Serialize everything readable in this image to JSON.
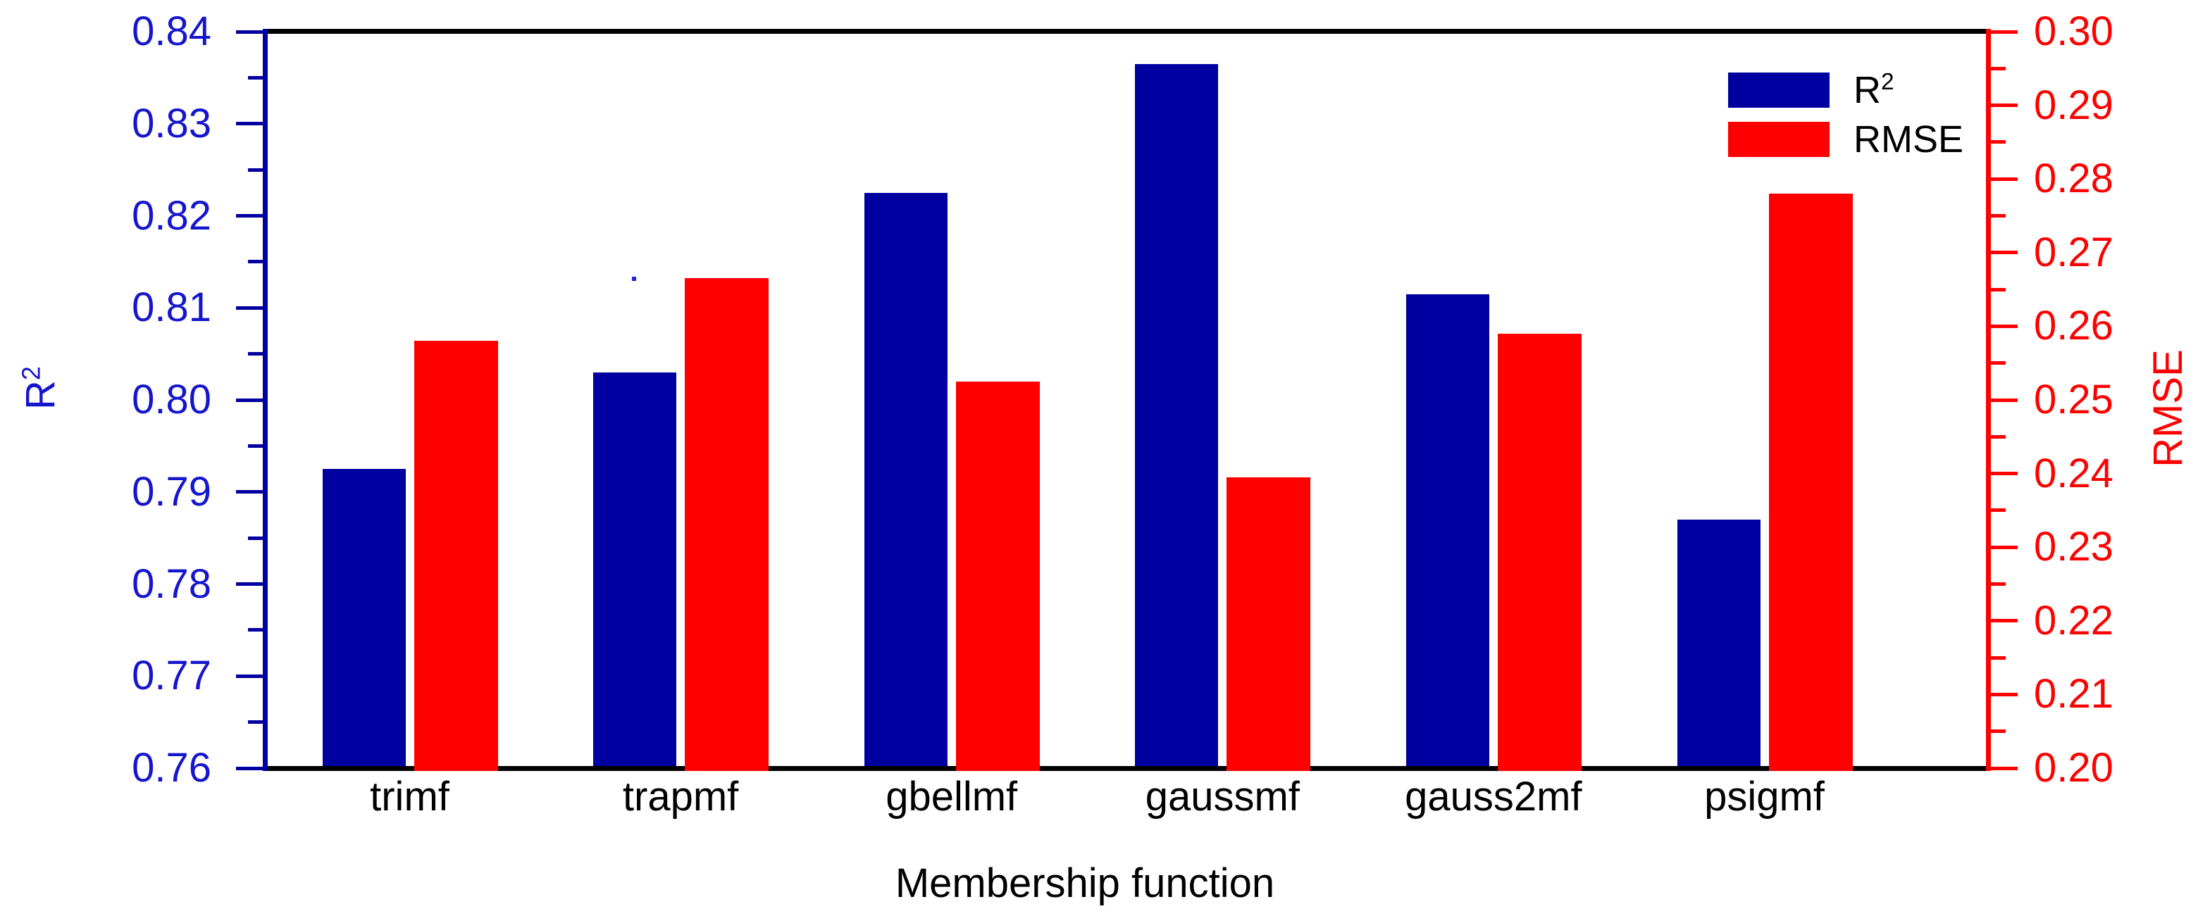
{
  "chart_data": {
    "type": "bar",
    "title": "",
    "xlabel": "Membership function",
    "categories": [
      "trimf",
      "trapmf",
      "gbellmf",
      "gaussmf",
      "gauss2mf",
      "psigmf"
    ],
    "series": [
      {
        "name": "R2",
        "axis": "left",
        "color": "#0000A0",
        "values": [
          0.7925,
          0.803,
          0.8225,
          0.8365,
          0.8115,
          0.787
        ]
      },
      {
        "name": "RMSE",
        "axis": "right",
        "color": "#FF0000",
        "values": [
          0.258,
          0.2665,
          0.2525,
          0.2395,
          0.259,
          0.278
        ]
      }
    ],
    "left_axis": {
      "label": "R",
      "label_sup": "2",
      "min": 0.76,
      "max": 0.84,
      "major_step": 0.01,
      "minor_step": 0.005,
      "line_color": "#0000A0",
      "text_color": "#1515CE",
      "tick_labels": [
        "0.76",
        "0.77",
        "0.78",
        "0.79",
        "0.80",
        "0.81",
        "0.82",
        "0.83",
        "0.84"
      ]
    },
    "right_axis": {
      "label": "RMSE",
      "label_sup": "",
      "min": 0.2,
      "max": 0.3,
      "major_step": 0.01,
      "minor_step": 0.005,
      "line_color": "#FF0000",
      "text_color": "#FF0000",
      "tick_labels": [
        "0.20",
        "0.21",
        "0.22",
        "0.23",
        "0.24",
        "0.25",
        "0.26",
        "0.27",
        "0.28",
        "0.29",
        "0.30"
      ]
    },
    "legend": [
      {
        "label": "R",
        "sup": "2",
        "color": "#0000A0"
      },
      {
        "label": "RMSE",
        "sup": "",
        "color": "#FF0000"
      }
    ],
    "grid": "off",
    "legend_position": "top-right",
    "frame_color": "#000000"
  }
}
